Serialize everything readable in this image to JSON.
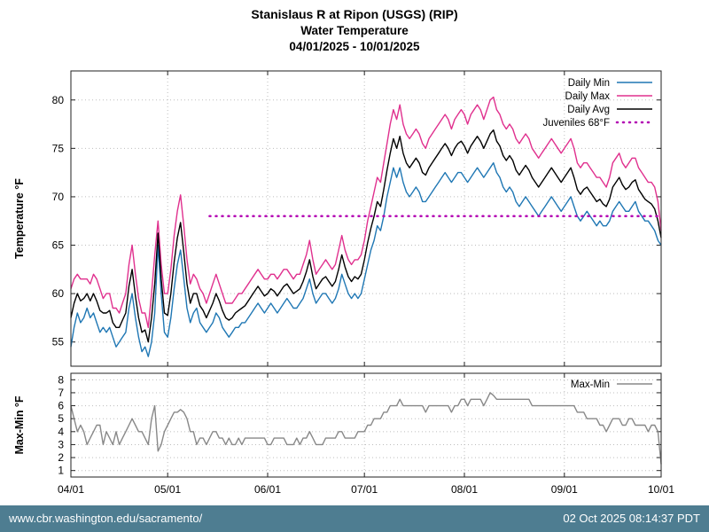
{
  "footer": {
    "url": "www.cbr.washington.edu/sacramento/",
    "timestamp": "02 Oct 2025 08:14:37 PDT",
    "background": "#4e7d91"
  },
  "chart_data": {
    "type": "line",
    "title": "Stanislaus R at Ripon (USGS) (RIP)",
    "subtitle": "Water Temperature",
    "date_range": "04/01/2025 - 10/01/2025",
    "x_tick_labels": [
      "04/01",
      "05/01",
      "06/01",
      "07/01",
      "08/01",
      "09/01",
      "10/01"
    ],
    "x_tick_days": [
      0,
      30,
      61,
      91,
      122,
      153,
      183
    ],
    "x_range_days": [
      0,
      183
    ],
    "grid": "dotted",
    "legend_position": "top-right-inside",
    "top": {
      "ylabel": "Temperature °F",
      "yticks": [
        55,
        60,
        65,
        70,
        75,
        80
      ],
      "ylim": [
        52.5,
        83
      ],
      "series": [
        {
          "name": "Daily Min",
          "color": "#1f77b4",
          "values": [
            54.5,
            56.5,
            58,
            57,
            57.5,
            58.5,
            57.5,
            58,
            57,
            56,
            56.5,
            56,
            56.5,
            55.5,
            54.5,
            55,
            55.5,
            56,
            58.5,
            60,
            57.5,
            55.5,
            54,
            54.5,
            53.5,
            55,
            58,
            65,
            60,
            56,
            55.5,
            57.5,
            60.5,
            63,
            64.5,
            61.5,
            58.5,
            57,
            58,
            58.5,
            57,
            56.5,
            56,
            56.5,
            57,
            58,
            57.5,
            56.5,
            56,
            55.5,
            56,
            56.5,
            56.5,
            57,
            57,
            57.5,
            58,
            58.5,
            59,
            58.5,
            58,
            58.5,
            59,
            58.5,
            58,
            58.5,
            59,
            59.5,
            59,
            58.5,
            58.5,
            59,
            59.5,
            60.5,
            61.5,
            60,
            59,
            59.5,
            60,
            60,
            59.5,
            59,
            59.5,
            60.5,
            62,
            61,
            60,
            59.5,
            60,
            59.5,
            60,
            61.5,
            63,
            64.5,
            65.5,
            67,
            66.5,
            68,
            70,
            71.5,
            73,
            72,
            73,
            71.5,
            70.5,
            70,
            70.5,
            71,
            70.5,
            69.5,
            69.5,
            70,
            70.5,
            71,
            71.5,
            72,
            72.5,
            72,
            71.5,
            72,
            72.5,
            72.5,
            72,
            71.5,
            72,
            72.5,
            73,
            72.5,
            72,
            72.5,
            73,
            73.5,
            72.5,
            72,
            71,
            70.5,
            71,
            70.5,
            69.5,
            69,
            69.5,
            70,
            69.5,
            69,
            68.5,
            68,
            68.5,
            69,
            69.5,
            70,
            69.5,
            69,
            68.5,
            69,
            69.5,
            70,
            69,
            68,
            67.5,
            68,
            68.5,
            68,
            67.5,
            67,
            67.5,
            67,
            67,
            67.5,
            68.5,
            69,
            69.5,
            69,
            68.5,
            68.5,
            69,
            69.5,
            68.5,
            68,
            67.5,
            67.5,
            67,
            66.5,
            65.5,
            65
          ]
        },
        {
          "name": "Daily Max",
          "color": "#e0308e",
          "values": [
            60.5,
            61.5,
            62,
            61.5,
            61.5,
            61.5,
            61,
            62,
            61.5,
            60.5,
            59.5,
            60,
            60,
            58.5,
            58.5,
            58,
            59,
            60,
            63,
            65,
            62,
            59.5,
            58,
            58,
            56.5,
            60,
            64,
            67.5,
            63,
            60,
            60,
            62.5,
            66,
            68.5,
            70.2,
            67,
            63.5,
            61,
            62,
            61.5,
            60.5,
            60,
            59,
            60,
            61,
            62,
            61,
            60,
            59,
            59,
            59,
            59.5,
            60,
            60,
            60.5,
            61,
            61.5,
            62,
            62.5,
            62,
            61.5,
            61.5,
            62,
            62,
            61.5,
            62,
            62.5,
            62.5,
            62,
            61.5,
            62,
            62,
            63,
            64,
            65.5,
            63.5,
            62,
            62.5,
            63,
            63.5,
            63,
            62.5,
            63,
            64.5,
            66,
            64.5,
            63.5,
            63,
            63.5,
            63.5,
            64,
            65.5,
            67.5,
            69,
            70.5,
            72,
            71.5,
            73.5,
            75.5,
            77.5,
            79,
            78,
            79.5,
            77.5,
            76.5,
            76,
            76.5,
            77,
            76.5,
            75.5,
            75,
            76,
            76.5,
            77,
            77.5,
            78,
            78.5,
            78,
            77,
            78,
            78.5,
            79,
            78.5,
            77.5,
            78.5,
            79,
            79.5,
            79,
            78,
            79,
            80,
            80.3,
            79,
            78.5,
            77.5,
            77,
            77.5,
            77,
            76,
            75.5,
            76,
            76.5,
            76,
            75,
            74.5,
            74,
            74.5,
            75,
            75.5,
            76,
            75.5,
            75,
            74.5,
            75,
            75.5,
            76,
            75,
            73.5,
            73,
            73.5,
            73.5,
            73,
            72.5,
            72,
            72,
            71.5,
            71,
            72,
            73.5,
            74,
            74.5,
            73.5,
            73,
            73.5,
            74,
            74,
            73,
            72.5,
            72,
            71.5,
            71.5,
            71,
            69.5,
            66.5
          ]
        },
        {
          "name": "Daily Avg",
          "color": "#000000",
          "values": [
            57.5,
            59,
            60,
            59.25,
            59.5,
            60,
            59.25,
            60,
            59.25,
            58.25,
            58,
            58,
            58.25,
            57,
            56.5,
            56.5,
            57.25,
            58,
            60.75,
            62.5,
            59.75,
            57.5,
            56,
            56.25,
            55,
            57.5,
            61,
            66.25,
            61.5,
            58,
            57.75,
            60,
            63.25,
            65.75,
            67.35,
            64.25,
            61,
            59,
            60,
            60,
            58.75,
            58.25,
            57.5,
            58.25,
            59,
            60,
            59.25,
            58.25,
            57.5,
            57.25,
            57.5,
            58,
            58.25,
            58.5,
            58.75,
            59.25,
            59.75,
            60.25,
            60.75,
            60.25,
            59.75,
            60,
            60.5,
            60.25,
            59.75,
            60.25,
            60.75,
            61,
            60.5,
            60,
            60.25,
            60.5,
            61.25,
            62.25,
            63.5,
            61.75,
            60.5,
            61,
            61.5,
            61.75,
            61.25,
            60.75,
            61.25,
            62.5,
            64,
            62.75,
            61.75,
            61.25,
            61.75,
            61.5,
            62,
            63.5,
            65.25,
            66.75,
            68,
            69.5,
            69,
            70.75,
            72.75,
            74.5,
            76,
            75,
            76.25,
            74.5,
            73.5,
            73,
            73.5,
            74,
            73.5,
            72.5,
            72.25,
            73,
            73.5,
            74,
            74.5,
            75,
            75.5,
            75,
            74.25,
            75,
            75.5,
            75.75,
            75.25,
            74.5,
            75.25,
            75.75,
            76.25,
            75.75,
            75,
            75.75,
            76.5,
            76.9,
            75.75,
            75.25,
            74.25,
            73.75,
            74.25,
            73.75,
            72.75,
            72.25,
            72.75,
            73.25,
            72.75,
            72,
            71.5,
            71,
            71.5,
            72,
            72.5,
            73,
            72.5,
            72,
            71.5,
            72,
            72.5,
            73,
            72,
            70.75,
            70.25,
            70.75,
            71,
            70.5,
            70,
            69.5,
            69.75,
            69.25,
            69,
            69.75,
            71,
            71.5,
            72,
            71.25,
            70.75,
            71,
            71.5,
            71.75,
            70.75,
            70.25,
            69.75,
            69.5,
            69.25,
            68.75,
            67.5,
            65.75
          ]
        }
      ],
      "threshold": {
        "name": "Juveniles 68°F",
        "value": 68,
        "color": "#b300b3",
        "style": "dotted",
        "start_day": 43,
        "end_day": 183
      }
    },
    "bottom": {
      "ylabel": "Max-Min °F",
      "yticks": [
        1,
        2,
        3,
        4,
        5,
        6,
        7,
        8
      ],
      "ylim": [
        0.5,
        8.5
      ],
      "series": [
        {
          "name": "Max-Min",
          "color": "#888888",
          "values": [
            6,
            5,
            4,
            4.5,
            4,
            3,
            3.5,
            4,
            4.5,
            4.5,
            3,
            4,
            3.5,
            3,
            4,
            3,
            3.5,
            4,
            4.5,
            5,
            4.5,
            4,
            4,
            3.5,
            3,
            5,
            6,
            2.5,
            3,
            4,
            4.5,
            5,
            5.5,
            5.5,
            5.7,
            5.5,
            5,
            4,
            4,
            3,
            3.5,
            3.5,
            3,
            3.5,
            4,
            4,
            3.5,
            3.5,
            3,
            3.5,
            3,
            3,
            3.5,
            3,
            3.5,
            3.5,
            3.5,
            3.5,
            3.5,
            3.5,
            3.5,
            3,
            3,
            3.5,
            3.5,
            3.5,
            3.5,
            3,
            3,
            3,
            3.5,
            3,
            3.5,
            3.5,
            4,
            3.5,
            3,
            3,
            3,
            3.5,
            3.5,
            3.5,
            3.5,
            4,
            4,
            3.5,
            3.5,
            3.5,
            3.5,
            4,
            4,
            4,
            4.5,
            4.5,
            5,
            5,
            5,
            5.5,
            5.5,
            6,
            6,
            6,
            6.5,
            6,
            6,
            6,
            6,
            6,
            6,
            6,
            5.5,
            6,
            6,
            6,
            6,
            6,
            6,
            6,
            5.5,
            6,
            6,
            6.5,
            6.5,
            6,
            6.5,
            6.5,
            6.5,
            6.5,
            6,
            6.5,
            7,
            6.8,
            6.5,
            6.5,
            6.5,
            6.5,
            6.5,
            6.5,
            6.5,
            6.5,
            6.5,
            6.5,
            6.5,
            6,
            6,
            6,
            6,
            6,
            6,
            6,
            6,
            6,
            6,
            6,
            6,
            6,
            6,
            5.5,
            5.5,
            5.5,
            5,
            5,
            5,
            5,
            4.5,
            4.5,
            4,
            4.5,
            5,
            5,
            5,
            4.5,
            4.5,
            5,
            5,
            4.5,
            4.5,
            4.5,
            4.5,
            4,
            4.5,
            4.5,
            4,
            1.5
          ]
        }
      ]
    }
  }
}
